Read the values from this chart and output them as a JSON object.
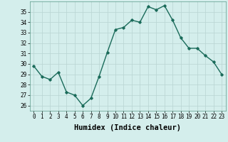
{
  "x": [
    0,
    1,
    2,
    3,
    4,
    5,
    6,
    7,
    8,
    9,
    10,
    11,
    12,
    13,
    14,
    15,
    16,
    17,
    18,
    19,
    20,
    21,
    22,
    23
  ],
  "y": [
    29.8,
    28.8,
    28.5,
    29.2,
    27.3,
    27.0,
    26.0,
    26.7,
    28.8,
    31.1,
    33.3,
    33.5,
    34.2,
    34.0,
    35.5,
    35.2,
    35.6,
    34.2,
    32.5,
    31.5,
    31.5,
    30.8,
    30.2,
    29.0
  ],
  "line_color": "#1a6b5a",
  "marker": "D",
  "marker_size": 1.8,
  "linewidth": 1.0,
  "xlabel": "Humidex (Indice chaleur)",
  "ylim": [
    25.5,
    36.0
  ],
  "xlim": [
    -0.5,
    23.5
  ],
  "yticks": [
    26,
    27,
    28,
    29,
    30,
    31,
    32,
    33,
    34,
    35
  ],
  "xtick_labels": [
    "0",
    "1",
    "2",
    "3",
    "4",
    "5",
    "6",
    "7",
    "8",
    "9",
    "10",
    "11",
    "12",
    "13",
    "14",
    "15",
    "16",
    "17",
    "18",
    "19",
    "20",
    "21",
    "22",
    "23"
  ],
  "bg_color": "#d4eeec",
  "grid_color": "#b8d4d2",
  "tick_fontsize": 5.5,
  "xlabel_fontsize": 7.5,
  "xlabel_fontweight": "bold"
}
